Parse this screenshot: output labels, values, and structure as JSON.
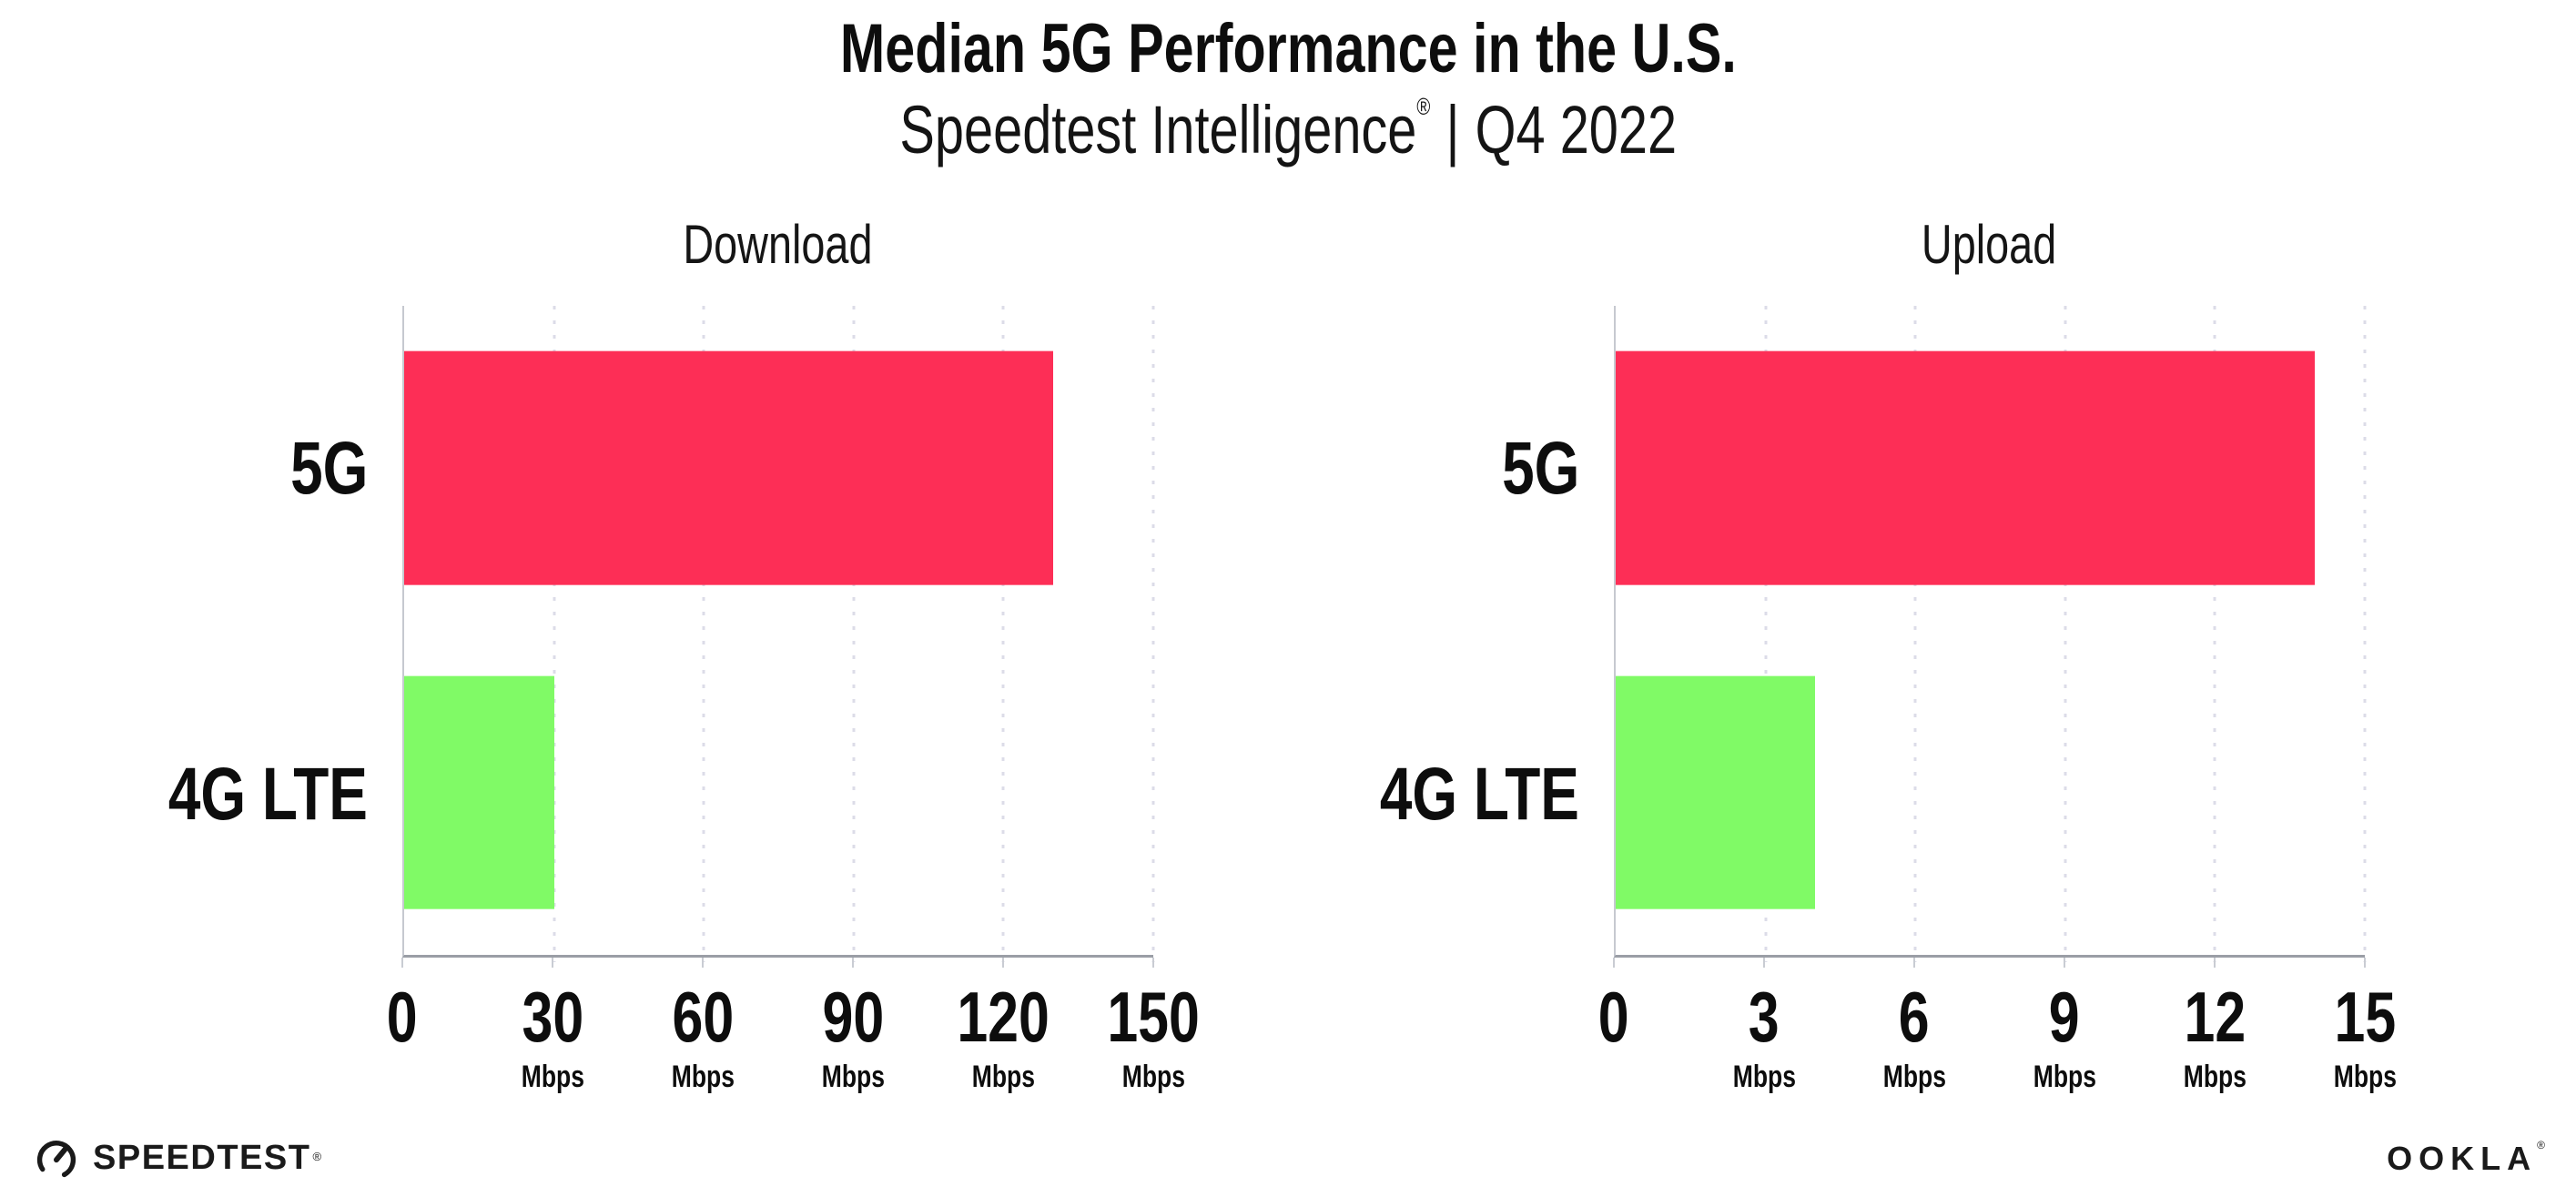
{
  "header": {
    "title": "Median 5G Performance in the U.S.",
    "subtitle_brand": "Speedtest Intelligence",
    "subtitle_reg": "®",
    "subtitle_sep": "|",
    "subtitle_period": "Q4 2022"
  },
  "chart_data": [
    {
      "type": "bar",
      "orientation": "horizontal",
      "title": "Download",
      "categories": [
        "5G",
        "4G LTE"
      ],
      "values": [
        130,
        30
      ],
      "unit": "Mbps",
      "xlim": [
        0,
        150
      ],
      "xticks": [
        0,
        30,
        60,
        90,
        120,
        150
      ],
      "bar_colors": [
        "#FD2E56",
        "#80FA66"
      ],
      "grid": "dotted-vertical",
      "legend": "none"
    },
    {
      "type": "bar",
      "orientation": "horizontal",
      "title": "Upload",
      "categories": [
        "5G",
        "4G LTE"
      ],
      "values": [
        14,
        4
      ],
      "unit": "Mbps",
      "xlim": [
        0,
        15
      ],
      "xticks": [
        0,
        3,
        6,
        9,
        12,
        15
      ],
      "bar_colors": [
        "#FD2E56",
        "#80FA66"
      ],
      "grid": "dotted-vertical",
      "legend": "none"
    }
  ],
  "footer": {
    "speedtest_label": "SPEEDTEST",
    "speedtest_mark": "®",
    "ookla_label": "OOKLA",
    "ookla_mark": "®"
  },
  "colors": {
    "bar_5g": "#FD2E56",
    "bar_4g_lte": "#80FA66",
    "axis_line": "#9A9EA6",
    "y_spine": "#C6C9D0",
    "gridline": "#DCDCE8",
    "text": "#111111",
    "background": "#FFFFFF"
  }
}
